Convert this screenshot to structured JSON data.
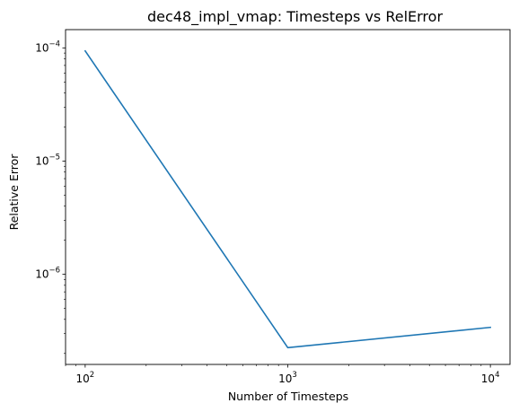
{
  "chart_data": {
    "type": "line",
    "title": "dec48_impl_vmap: Timesteps vs RelError",
    "xlabel": "Number of Timesteps",
    "ylabel": "Relative Error",
    "xscale": "log",
    "yscale": "log",
    "xlim": [
      80,
      12500
    ],
    "ylim": [
      1.6e-07,
      0.000145
    ],
    "grid": false,
    "line_color": "#1f77b4",
    "x_ticks": [
      {
        "value": 100,
        "base": "10",
        "exp": "2"
      },
      {
        "value": 1000,
        "base": "10",
        "exp": "3"
      },
      {
        "value": 10000,
        "base": "10",
        "exp": "4"
      }
    ],
    "y_ticks": [
      {
        "value": 1e-06,
        "base": "10",
        "exp": "−6"
      },
      {
        "value": 1e-05,
        "base": "10",
        "exp": "−5"
      },
      {
        "value": 0.0001,
        "base": "10",
        "exp": "−4"
      }
    ],
    "series": [
      {
        "x": [
          100,
          1000,
          10000
        ],
        "y": [
          9.4e-05,
          2.25e-07,
          3.4e-07
        ]
      }
    ]
  }
}
